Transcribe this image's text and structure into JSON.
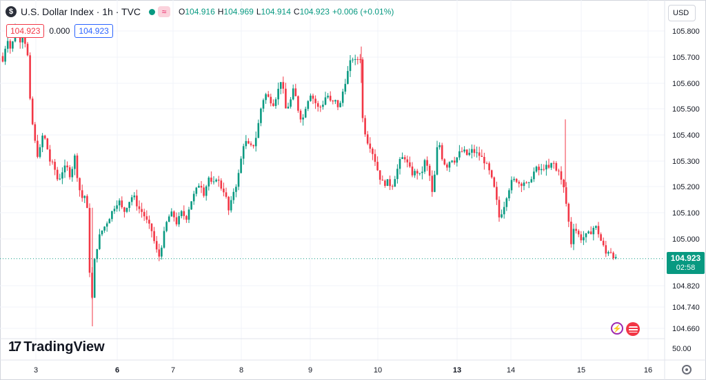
{
  "legend": {
    "symbol_icon": "dollar-icon",
    "symbol_glyph": "$",
    "title": "U.S. Dollar Index · 1h · TVC",
    "status_icons": [
      "market-open-dot-icon",
      "wave-icon"
    ],
    "wave_glyph": "≈",
    "open_label": "O",
    "open": "104.916",
    "high_label": "H",
    "high": "104.969",
    "low_label": "L",
    "low": "104.914",
    "close_label": "C",
    "close": "104.923",
    "change": "+0.006 (+0.01%)"
  },
  "indicators": {
    "value_red": "104.923",
    "value_plain": "0.000",
    "value_blue": "104.923"
  },
  "toolbar": {
    "currency": "USD"
  },
  "price_badge": {
    "price": "104.923",
    "countdown": "02:58"
  },
  "branding": {
    "mark": "17",
    "name": "TradingView"
  },
  "colors": {
    "up": "#089981",
    "down": "#f23645",
    "grid": "#f0f3fa",
    "axis_text": "#131722",
    "badge": "#089981"
  },
  "icons": {
    "bolt": "lightning-icon",
    "flag": "us-flag-icon",
    "settings": "settings-icon"
  },
  "chart_data": {
    "type": "candlestick",
    "y_axis_ticks": [
      "105.800",
      "105.700",
      "105.600",
      "105.500",
      "105.400",
      "105.300",
      "105.200",
      "105.100",
      "105.000",
      "104.820",
      "104.740",
      "104.660"
    ],
    "y_axis_values": [
      105.8,
      105.7,
      105.6,
      105.5,
      105.4,
      105.3,
      105.2,
      105.1,
      105.0,
      104.82,
      104.74,
      104.66
    ],
    "lower_pane_tick": "50.00",
    "x_axis_ticks": [
      "3",
      "6",
      "7",
      "8",
      "9",
      "10",
      "13",
      "14",
      "15",
      "16"
    ],
    "bold_x_ticks": [
      "6",
      "13"
    ],
    "current_price": 104.923,
    "price_path": [
      [
        0,
        105.75
      ],
      [
        6,
        105.68
      ],
      [
        12,
        105.78
      ],
      [
        18,
        105.72
      ],
      [
        24,
        105.82
      ],
      [
        30,
        105.76
      ],
      [
        36,
        105.79
      ],
      [
        42,
        105.7
      ],
      [
        46,
        105.5
      ],
      [
        52,
        105.38
      ],
      [
        58,
        105.3
      ],
      [
        62,
        105.4
      ],
      [
        68,
        105.38
      ],
      [
        74,
        105.3
      ],
      [
        80,
        105.28
      ],
      [
        86,
        105.22
      ],
      [
        92,
        105.26
      ],
      [
        98,
        105.28
      ],
      [
        104,
        105.24
      ],
      [
        110,
        105.32
      ],
      [
        116,
        105.2
      ],
      [
        122,
        105.15
      ],
      [
        127,
        105.18
      ],
      [
        131,
        104.95
      ],
      [
        134,
        104.67
      ],
      [
        137,
        104.88
      ],
      [
        141,
        104.95
      ],
      [
        147,
        105.02
      ],
      [
        154,
        105.05
      ],
      [
        160,
        105.08
      ],
      [
        167,
        105.12
      ],
      [
        174,
        105.15
      ],
      [
        181,
        105.1
      ],
      [
        188,
        105.14
      ],
      [
        195,
        105.17
      ],
      [
        202,
        105.12
      ],
      [
        209,
        105.1
      ],
      [
        216,
        105.06
      ],
      [
        222,
        105.03
      ],
      [
        228,
        104.96
      ],
      [
        233,
        104.93
      ],
      [
        238,
        105.0
      ],
      [
        245,
        105.08
      ],
      [
        252,
        105.1
      ],
      [
        258,
        105.06
      ],
      [
        265,
        105.1
      ],
      [
        272,
        105.08
      ],
      [
        278,
        105.14
      ],
      [
        285,
        105.18
      ],
      [
        292,
        105.22
      ],
      [
        298,
        105.17
      ],
      [
        304,
        105.24
      ],
      [
        310,
        105.2
      ],
      [
        316,
        105.24
      ],
      [
        322,
        105.2
      ],
      [
        328,
        105.18
      ],
      [
        334,
        105.1
      ],
      [
        340,
        105.18
      ],
      [
        346,
        105.22
      ],
      [
        351,
        105.3
      ],
      [
        356,
        105.38
      ],
      [
        362,
        105.36
      ],
      [
        368,
        105.35
      ],
      [
        374,
        105.4
      ],
      [
        380,
        105.5
      ],
      [
        386,
        105.56
      ],
      [
        392,
        105.54
      ],
      [
        398,
        105.52
      ],
      [
        404,
        105.56
      ],
      [
        410,
        105.62
      ],
      [
        416,
        105.5
      ],
      [
        422,
        105.52
      ],
      [
        428,
        105.58
      ],
      [
        434,
        105.5
      ],
      [
        440,
        105.45
      ],
      [
        446,
        105.52
      ],
      [
        452,
        105.56
      ],
      [
        458,
        105.53
      ],
      [
        464,
        105.5
      ],
      [
        470,
        105.52
      ],
      [
        476,
        105.56
      ],
      [
        482,
        105.52
      ],
      [
        488,
        105.53
      ],
      [
        494,
        105.5
      ],
      [
        500,
        105.58
      ],
      [
        506,
        105.64
      ],
      [
        512,
        105.7
      ],
      [
        518,
        105.68
      ],
      [
        524,
        105.71
      ],
      [
        528,
        105.45
      ],
      [
        534,
        105.38
      ],
      [
        540,
        105.35
      ],
      [
        546,
        105.3
      ],
      [
        552,
        105.24
      ],
      [
        558,
        105.21
      ],
      [
        564,
        105.22
      ],
      [
        570,
        105.2
      ],
      [
        576,
        105.25
      ],
      [
        582,
        105.3
      ],
      [
        588,
        105.32
      ],
      [
        594,
        105.28
      ],
      [
        600,
        105.25
      ],
      [
        606,
        105.26
      ],
      [
        612,
        105.24
      ],
      [
        618,
        105.3
      ],
      [
        624,
        105.26
      ],
      [
        630,
        105.15
      ],
      [
        634,
        105.32
      ],
      [
        638,
        105.38
      ],
      [
        644,
        105.3
      ],
      [
        650,
        105.28
      ],
      [
        656,
        105.31
      ],
      [
        662,
        105.3
      ],
      [
        668,
        105.33
      ],
      [
        674,
        105.34
      ],
      [
        680,
        105.32
      ],
      [
        686,
        105.34
      ],
      [
        692,
        105.33
      ],
      [
        698,
        105.32
      ],
      [
        704,
        105.3
      ],
      [
        710,
        105.27
      ],
      [
        716,
        105.22
      ],
      [
        720,
        105.18
      ],
      [
        726,
        105.08
      ],
      [
        732,
        105.12
      ],
      [
        738,
        105.18
      ],
      [
        744,
        105.22
      ],
      [
        750,
        105.23
      ],
      [
        756,
        105.21
      ],
      [
        762,
        105.22
      ],
      [
        768,
        105.2
      ],
      [
        774,
        105.25
      ],
      [
        780,
        105.27
      ],
      [
        786,
        105.26
      ],
      [
        792,
        105.28
      ],
      [
        798,
        105.27
      ],
      [
        804,
        105.3
      ],
      [
        808,
        105.26
      ],
      [
        812,
        105.27
      ],
      [
        815,
        105.23
      ],
      [
        820,
        105.19
      ],
      [
        826,
        105.08
      ],
      [
        830,
        104.98
      ],
      [
        834,
        105.05
      ],
      [
        838,
        105.03
      ],
      [
        844,
        105.0
      ],
      [
        850,
        105.01
      ],
      [
        856,
        105.02
      ],
      [
        860,
        105.03
      ],
      [
        864,
        105.05
      ],
      [
        868,
        105.04
      ],
      [
        872,
        105.0
      ],
      [
        876,
        104.98
      ],
      [
        880,
        104.94
      ],
      [
        886,
        104.96
      ],
      [
        890,
        104.94
      ],
      [
        895,
        104.92
      ]
    ]
  }
}
